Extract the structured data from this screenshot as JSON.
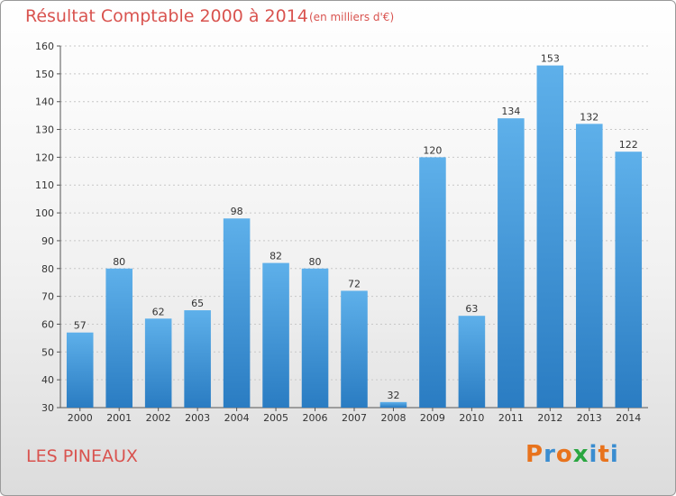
{
  "header": {
    "title": "Résultat Comptable 2000 à 2014",
    "subtitle": "(en milliers d'€)"
  },
  "footer": {
    "commune": "LES PINEAUX",
    "brand": [
      "P",
      "r",
      "o",
      "x",
      "i",
      "t",
      "i"
    ],
    "brand_colors": [
      "#e8731d",
      "#3a8dd0",
      "#e8731d",
      "#2aa640",
      "#3a8dd0",
      "#e8731d",
      "#3a8dd0"
    ]
  },
  "chart_data": {
    "type": "bar",
    "categories": [
      "2000",
      "2001",
      "2002",
      "2003",
      "2004",
      "2005",
      "2006",
      "2007",
      "2008",
      "2009",
      "2010",
      "2011",
      "2012",
      "2013",
      "2014"
    ],
    "values": [
      57,
      80,
      62,
      65,
      98,
      82,
      80,
      72,
      32,
      120,
      63,
      134,
      153,
      132,
      122
    ],
    "title": "Résultat Comptable 2000 à 2014",
    "ylim": [
      30,
      160
    ],
    "yticks": [
      30,
      40,
      50,
      60,
      70,
      80,
      90,
      100,
      110,
      120,
      130,
      140,
      150,
      160
    ],
    "grid": true,
    "bar_color_top": "#5eb0ea",
    "bar_color_bottom": "#2a7cc2"
  }
}
